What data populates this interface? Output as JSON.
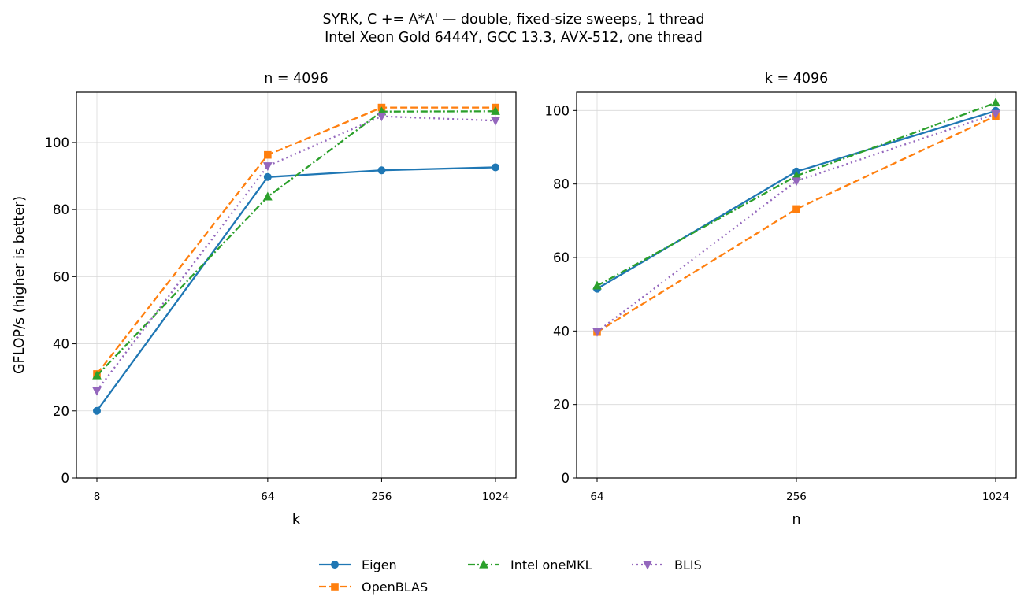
{
  "figure": {
    "title_line1": "SYRK, C += A*A' — double, fixed-size sweeps, 1 thread",
    "title_line2": "Intel Xeon Gold 6444Y, GCC 13.3, AVX-512, one thread"
  },
  "legend": {
    "placement": "bottom-center",
    "entries": [
      "Eigen",
      "Intel oneMKL",
      "BLIS",
      "OpenBLAS"
    ]
  },
  "styles": {
    "Eigen": {
      "color": "#1f77b4",
      "dash": "",
      "marker": "circle"
    },
    "OpenBLAS": {
      "color": "#ff7f0e",
      "dash": "9,4",
      "marker": "square"
    },
    "Intel oneMKL": {
      "color": "#2ca02c",
      "dash": "9,3,2,3",
      "marker": "triangle-up"
    },
    "BLIS": {
      "color": "#9467bd",
      "dash": "2,4",
      "marker": "triangle-down"
    }
  },
  "chart_data": [
    {
      "type": "line",
      "title": "n = 4096",
      "xlabel": "k",
      "ylabel": "GFLOP/s (higher is better)",
      "x_scale": "log2",
      "x": [
        8,
        64,
        256,
        1024
      ],
      "x_tick_labels": [
        "8",
        "64",
        "256",
        "1024"
      ],
      "y_ticks": [
        0,
        20,
        40,
        60,
        80,
        100
      ],
      "ylim": [
        0,
        115
      ],
      "grid": true,
      "series": [
        {
          "name": "Eigen",
          "values": [
            20.0,
            89.7,
            91.7,
            92.6
          ]
        },
        {
          "name": "OpenBLAS",
          "values": [
            31.0,
            96.3,
            110.4,
            110.4
          ]
        },
        {
          "name": "Intel oneMKL",
          "values": [
            30.5,
            83.8,
            109.2,
            109.3
          ]
        },
        {
          "name": "BLIS",
          "values": [
            26.0,
            93.0,
            107.8,
            106.5
          ]
        }
      ]
    },
    {
      "type": "line",
      "title": "k = 4096",
      "xlabel": "n",
      "ylabel": "",
      "x_scale": "log2",
      "x": [
        64,
        256,
        1024
      ],
      "x_tick_labels": [
        "64",
        "256",
        "1024"
      ],
      "y_ticks": [
        0,
        20,
        40,
        60,
        80,
        100
      ],
      "ylim": [
        0,
        105
      ],
      "grid": true,
      "series": [
        {
          "name": "Eigen",
          "values": [
            51.5,
            83.4,
            99.9
          ]
        },
        {
          "name": "OpenBLAS",
          "values": [
            39.7,
            73.2,
            98.5
          ]
        },
        {
          "name": "Intel oneMKL",
          "values": [
            52.3,
            82.2,
            102.1
          ]
        },
        {
          "name": "BLIS",
          "values": [
            39.8,
            80.8,
            99.1
          ]
        }
      ]
    }
  ]
}
